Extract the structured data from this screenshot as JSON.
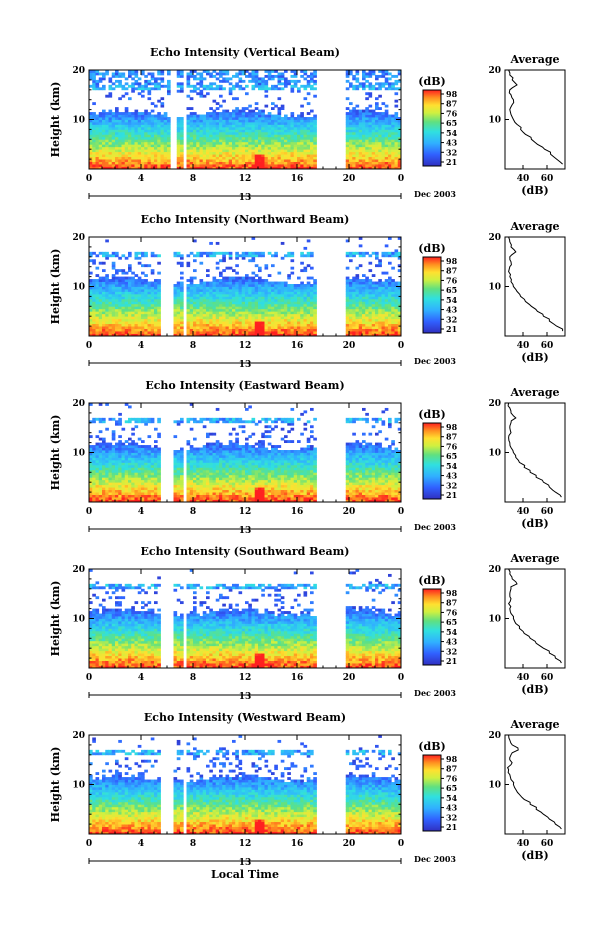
{
  "figure": {
    "xlabel": "Local Time",
    "date_label": "Dec 2003",
    "day_label": "13",
    "colorbar_unit": "(dB)",
    "average_title": "Average",
    "average_xlabel": "(dB)"
  },
  "chart_data": [
    {
      "type": "heatmap",
      "title": "Echo Intensity (Vertical Beam)",
      "ylabel": "Height (km)",
      "xlim": [
        0,
        24
      ],
      "ylim": [
        0,
        20
      ],
      "xticks": [
        "0",
        "4",
        "8",
        "12",
        "16",
        "20",
        "0"
      ],
      "yticks": [
        "10",
        "20"
      ],
      "colorbar_ticks": [
        "98",
        "87",
        "76",
        "65",
        "54",
        "43",
        "32",
        "21"
      ],
      "gaps": [
        [
          6.3,
          6.7
        ],
        [
          7.2,
          7.6
        ],
        [
          17.6,
          19.8
        ]
      ],
      "average": {
        "xticks": [
          "40",
          "60"
        ],
        "yticks": [
          "10",
          "20"
        ],
        "xlim": [
          25,
          75
        ],
        "profile": [
          [
            73,
            1
          ],
          [
            68,
            2
          ],
          [
            63,
            3
          ],
          [
            58,
            4
          ],
          [
            52,
            5
          ],
          [
            47,
            6
          ],
          [
            42,
            7
          ],
          [
            38,
            8
          ],
          [
            35,
            9
          ],
          [
            32,
            10
          ],
          [
            30,
            11
          ],
          [
            29,
            12
          ],
          [
            31,
            13
          ],
          [
            32,
            14
          ],
          [
            30,
            15
          ],
          [
            29,
            16
          ],
          [
            35,
            17
          ],
          [
            31,
            18
          ],
          [
            29,
            19
          ],
          [
            28,
            20
          ]
        ]
      }
    },
    {
      "type": "heatmap",
      "title": "Echo Intensity (Northward Beam)",
      "ylabel": "Height (km)",
      "xlim": [
        0,
        24
      ],
      "ylim": [
        0,
        20
      ],
      "xticks": [
        "0",
        "4",
        "8",
        "12",
        "16",
        "20",
        "0"
      ],
      "yticks": [
        "10",
        "20"
      ],
      "colorbar_ticks": [
        "98",
        "87",
        "76",
        "65",
        "54",
        "43",
        "32",
        "21"
      ],
      "gaps": [
        [
          5.5,
          6.5
        ],
        [
          7.2,
          7.6
        ],
        [
          17.6,
          19.8
        ]
      ],
      "average": {
        "xticks": [
          "40",
          "60"
        ],
        "yticks": [
          "10",
          "20"
        ],
        "xlim": [
          25,
          75
        ],
        "profile": [
          [
            73,
            1
          ],
          [
            68,
            2
          ],
          [
            62,
            3
          ],
          [
            57,
            4
          ],
          [
            52,
            5
          ],
          [
            47,
            6
          ],
          [
            42,
            7
          ],
          [
            38,
            8
          ],
          [
            35,
            9
          ],
          [
            32,
            10
          ],
          [
            30,
            11
          ],
          [
            29,
            12
          ],
          [
            28,
            13
          ],
          [
            29,
            14
          ],
          [
            30,
            15
          ],
          [
            29,
            16
          ],
          [
            34,
            17
          ],
          [
            30,
            18
          ],
          [
            29,
            19
          ],
          [
            28,
            20
          ]
        ]
      }
    },
    {
      "type": "heatmap",
      "title": "Echo Intensity (Eastward Beam)",
      "ylabel": "Height (km)",
      "xlim": [
        0,
        24
      ],
      "ylim": [
        0,
        20
      ],
      "xticks": [
        "0",
        "4",
        "8",
        "12",
        "16",
        "20",
        "0"
      ],
      "yticks": [
        "10",
        "20"
      ],
      "colorbar_ticks": [
        "98",
        "87",
        "76",
        "65",
        "54",
        "43",
        "32",
        "21"
      ],
      "gaps": [
        [
          5.5,
          6.5
        ],
        [
          7.2,
          7.6
        ],
        [
          17.6,
          19.8
        ]
      ],
      "average": {
        "xticks": [
          "40",
          "60"
        ],
        "yticks": [
          "10",
          "20"
        ],
        "xlim": [
          25,
          75
        ],
        "profile": [
          [
            72,
            1
          ],
          [
            67,
            2
          ],
          [
            62,
            3
          ],
          [
            57,
            4
          ],
          [
            51,
            5
          ],
          [
            46,
            6
          ],
          [
            41,
            7
          ],
          [
            37,
            8
          ],
          [
            34,
            9
          ],
          [
            32,
            10
          ],
          [
            30,
            11
          ],
          [
            29,
            12
          ],
          [
            28,
            13
          ],
          [
            30,
            14
          ],
          [
            29,
            15
          ],
          [
            30,
            16
          ],
          [
            34,
            17
          ],
          [
            30,
            18
          ],
          [
            29,
            19
          ],
          [
            28,
            20
          ]
        ]
      }
    },
    {
      "type": "heatmap",
      "title": "Echo Intensity (Southward Beam)",
      "ylabel": "Height (km)",
      "xlim": [
        0,
        24
      ],
      "ylim": [
        0,
        20
      ],
      "xticks": [
        "0",
        "4",
        "8",
        "12",
        "16",
        "20",
        "0"
      ],
      "yticks": [
        "10",
        "20"
      ],
      "colorbar_ticks": [
        "98",
        "87",
        "76",
        "65",
        "54",
        "43",
        "32",
        "21"
      ],
      "gaps": [
        [
          5.5,
          6.5
        ],
        [
          7.2,
          7.6
        ],
        [
          17.6,
          19.8
        ]
      ],
      "average": {
        "xticks": [
          "40",
          "60"
        ],
        "yticks": [
          "10",
          "20"
        ],
        "xlim": [
          25,
          75
        ],
        "profile": [
          [
            72,
            1
          ],
          [
            67,
            2
          ],
          [
            62,
            3
          ],
          [
            57,
            4
          ],
          [
            51,
            5
          ],
          [
            46,
            6
          ],
          [
            41,
            7
          ],
          [
            37,
            8
          ],
          [
            34,
            9
          ],
          [
            32,
            10
          ],
          [
            30,
            11
          ],
          [
            29,
            12
          ],
          [
            28,
            13
          ],
          [
            30,
            14
          ],
          [
            29,
            15
          ],
          [
            30,
            16
          ],
          [
            35,
            17
          ],
          [
            31,
            18
          ],
          [
            29,
            19
          ],
          [
            28,
            20
          ]
        ]
      }
    },
    {
      "type": "heatmap",
      "title": "Echo Intensity (Westward Beam)",
      "ylabel": "Height (km)",
      "xlim": [
        0,
        24
      ],
      "ylim": [
        0,
        20
      ],
      "xticks": [
        "0",
        "4",
        "8",
        "12",
        "16",
        "20",
        "0"
      ],
      "yticks": [
        "10",
        "20"
      ],
      "colorbar_ticks": [
        "98",
        "87",
        "76",
        "65",
        "54",
        "43",
        "32",
        "21"
      ],
      "gaps": [
        [
          5.5,
          6.5
        ],
        [
          7.2,
          7.6
        ],
        [
          17.6,
          19.8
        ]
      ],
      "average": {
        "xticks": [
          "40",
          "60"
        ],
        "yticks": [
          "10",
          "20"
        ],
        "xlim": [
          25,
          75
        ],
        "profile": [
          [
            72,
            1
          ],
          [
            67,
            2
          ],
          [
            62,
            3
          ],
          [
            57,
            4
          ],
          [
            51,
            5
          ],
          [
            46,
            6
          ],
          [
            41,
            7
          ],
          [
            37,
            8
          ],
          [
            34,
            9
          ],
          [
            32,
            10
          ],
          [
            30,
            11
          ],
          [
            29,
            12
          ],
          [
            28,
            13
          ],
          [
            30,
            14
          ],
          [
            29,
            15
          ],
          [
            30,
            16
          ],
          [
            36,
            17
          ],
          [
            31,
            18
          ],
          [
            29,
            19
          ],
          [
            28,
            20
          ]
        ]
      }
    }
  ]
}
